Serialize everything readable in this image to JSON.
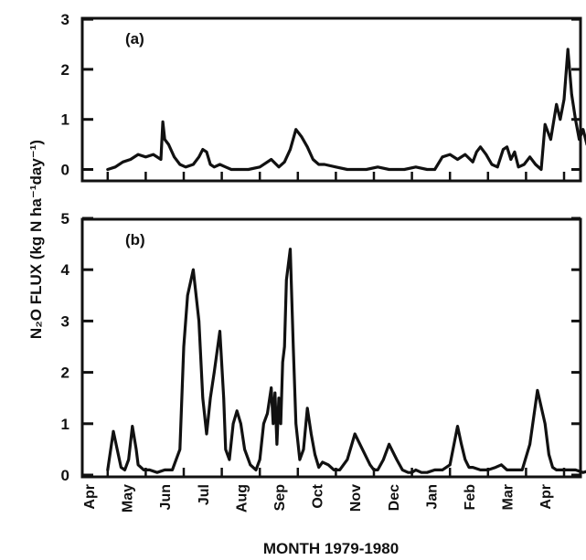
{
  "chart_data": [
    {
      "type": "line",
      "panel_label": "(a)",
      "x_tick_labels": [
        "Apr",
        "May",
        "Jun",
        "Jul",
        "Aug",
        "Sep",
        "Oct",
        "Nov",
        "Dec",
        "Jan",
        "Feb",
        "Mar",
        "Apr"
      ],
      "ylim": [
        0,
        3
      ],
      "y_ticks": [
        0,
        1,
        2,
        3
      ],
      "ylabel": "N₂O FLUX (kg N ha⁻¹day⁻¹)",
      "xlabel": "MONTH 1979-1980",
      "series": [
        {
          "x": [
            0.5,
            0.7,
            0.9,
            1.1,
            1.3,
            1.5,
            1.7,
            1.9,
            1.95,
            2.0,
            2.1,
            2.25,
            2.4,
            2.55,
            2.75,
            2.9,
            3.0,
            3.1,
            3.2,
            3.3,
            3.45,
            3.6,
            3.75,
            3.9,
            4.0,
            4.2,
            4.5,
            4.8,
            5.0,
            5.15,
            5.3,
            5.45,
            5.6,
            5.75,
            5.9,
            6.05,
            6.2,
            6.5,
            6.8,
            7.1,
            7.3,
            7.6,
            7.9,
            8.1,
            8.3,
            8.6,
            8.9,
            9.1,
            9.3,
            9.5,
            9.7,
            9.9,
            10.1,
            10.2,
            10.3,
            10.45,
            10.6,
            10.75,
            10.9,
            11.0,
            11.1,
            11.2,
            11.3,
            11.45,
            11.6,
            11.75,
            11.9,
            12.0,
            12.15,
            12.3,
            12.4,
            12.5,
            12.6,
            12.7,
            12.8,
            12.9,
            13.0,
            13.1,
            13.25
          ],
          "y": [
            0.0,
            0.05,
            0.15,
            0.2,
            0.3,
            0.25,
            0.3,
            0.2,
            0.95,
            0.6,
            0.5,
            0.25,
            0.1,
            0.05,
            0.1,
            0.25,
            0.4,
            0.35,
            0.1,
            0.05,
            0.1,
            0.05,
            0.0,
            0.0,
            0.0,
            0.0,
            0.05,
            0.2,
            0.05,
            0.15,
            0.4,
            0.8,
            0.65,
            0.45,
            0.2,
            0.1,
            0.1,
            0.05,
            0.0,
            0.0,
            0.0,
            0.05,
            0.0,
            0.0,
            0.0,
            0.05,
            0.0,
            0.0,
            0.25,
            0.3,
            0.2,
            0.3,
            0.15,
            0.35,
            0.45,
            0.3,
            0.1,
            0.05,
            0.4,
            0.45,
            0.2,
            0.35,
            0.05,
            0.1,
            0.25,
            0.1,
            0.0,
            0.9,
            0.6,
            1.3,
            1.0,
            1.4,
            2.4,
            1.5,
            1.0,
            0.6,
            0.8,
            0.5,
            0.8
          ]
        }
      ]
    },
    {
      "type": "line",
      "panel_label": "(b)",
      "x_tick_labels": [
        "Apr",
        "May",
        "Jun",
        "Jul",
        "Aug",
        "Sep",
        "Oct",
        "Nov",
        "Dec",
        "Jan",
        "Feb",
        "Mar",
        "Apr"
      ],
      "ylim": [
        0,
        5
      ],
      "y_ticks": [
        0,
        1,
        2,
        3,
        4,
        5
      ],
      "ylabel": "N₂O FLUX (kg N ha⁻¹day⁻¹)",
      "xlabel": "MONTH 1979-1980",
      "series": [
        {
          "x": [
            0.5,
            0.65,
            0.75,
            0.85,
            0.95,
            1.05,
            1.15,
            1.25,
            1.3,
            1.45,
            1.6,
            1.8,
            2.0,
            2.2,
            2.4,
            2.5,
            2.6,
            2.75,
            2.9,
            3.0,
            3.1,
            3.2,
            3.3,
            3.45,
            3.55,
            3.6,
            3.7,
            3.8,
            3.9,
            4.0,
            4.1,
            4.25,
            4.4,
            4.5,
            4.6,
            4.7,
            4.8,
            4.85,
            4.9,
            4.95,
            5.0,
            5.05,
            5.1,
            5.15,
            5.2,
            5.3,
            5.38,
            5.45,
            5.55,
            5.65,
            5.75,
            5.85,
            5.95,
            6.05,
            6.15,
            6.3,
            6.45,
            6.6,
            6.8,
            7.0,
            7.2,
            7.4,
            7.5,
            7.6,
            7.75,
            7.9,
            8.1,
            8.25,
            8.4,
            8.5,
            8.6,
            8.75,
            8.9,
            9.1,
            9.3,
            9.5,
            9.7,
            9.8,
            9.9,
            10.0,
            10.1,
            10.3,
            10.5,
            10.7,
            10.85,
            11.0,
            11.2,
            11.4,
            11.6,
            11.8,
            12.0,
            12.1,
            12.2,
            12.3,
            12.45,
            12.6,
            12.8,
            13.0,
            13.25
          ],
          "y": [
            0.1,
            0.85,
            0.5,
            0.15,
            0.1,
            0.3,
            0.95,
            0.5,
            0.2,
            0.1,
            0.1,
            0.05,
            0.1,
            0.1,
            0.5,
            2.5,
            3.5,
            4.0,
            3.0,
            1.5,
            0.8,
            1.5,
            2.0,
            2.8,
            1.5,
            0.5,
            0.3,
            1.0,
            1.25,
            1.0,
            0.5,
            0.2,
            0.1,
            0.3,
            1.0,
            1.2,
            1.7,
            1.0,
            1.6,
            0.6,
            1.5,
            1.0,
            2.2,
            2.5,
            3.8,
            4.4,
            2.5,
            1.0,
            0.3,
            0.5,
            1.3,
            0.8,
            0.4,
            0.15,
            0.25,
            0.2,
            0.1,
            0.1,
            0.3,
            0.8,
            0.5,
            0.2,
            0.1,
            0.1,
            0.3,
            0.6,
            0.3,
            0.1,
            0.05,
            0.05,
            0.1,
            0.05,
            0.05,
            0.1,
            0.1,
            0.2,
            0.95,
            0.6,
            0.3,
            0.15,
            0.15,
            0.1,
            0.1,
            0.15,
            0.2,
            0.1,
            0.1,
            0.1,
            0.6,
            1.65,
            1.0,
            0.4,
            0.15,
            0.1,
            0.1,
            0.1,
            0.1,
            0.05,
            0.1
          ]
        }
      ]
    }
  ]
}
